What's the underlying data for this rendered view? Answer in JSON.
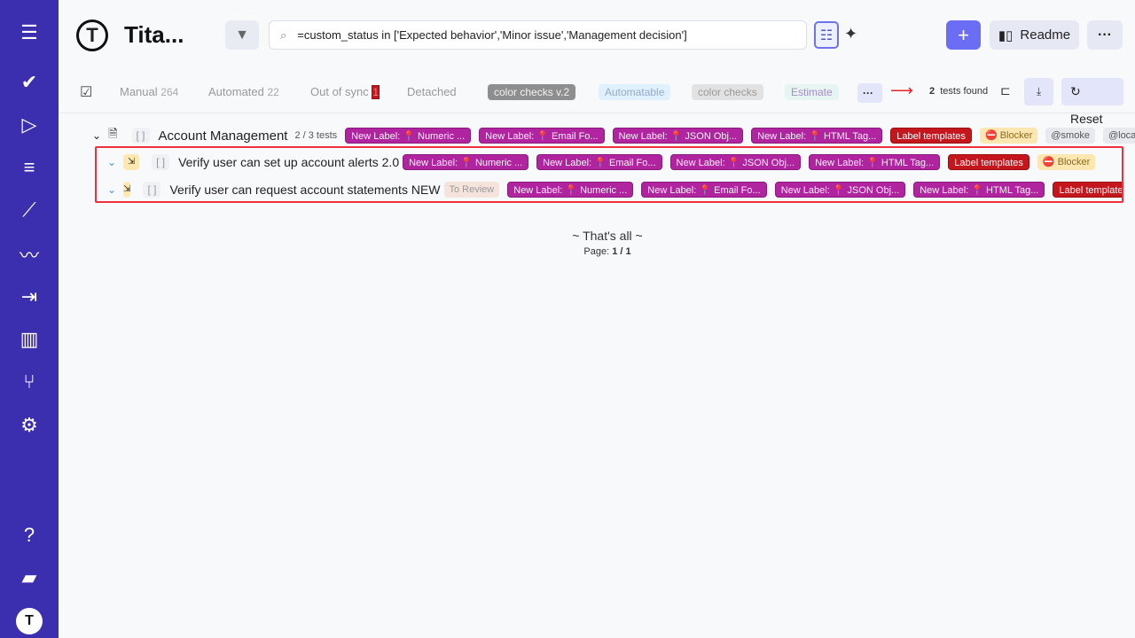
{
  "app": {
    "title": "Tita...",
    "logo_letter": "T"
  },
  "search": {
    "query": "=custom_status in ['Expected behavior','Minor issue','Management decision']"
  },
  "header": {
    "readme": "Readme",
    "plus": "+",
    "more": "···"
  },
  "tabs": [
    {
      "label": "Manual",
      "count": "264"
    },
    {
      "label": "Automated",
      "count": "22"
    },
    {
      "label": "Out of sync",
      "count": "1"
    },
    {
      "label": "Detached",
      "count": ""
    }
  ],
  "chips": [
    "color checks v.2",
    "Automatable",
    "color checks",
    "Estimate"
  ],
  "toolbar": {
    "more": "···",
    "tests_count": "2",
    "tests_found": "tests found",
    "reset": "Reset"
  },
  "suite": {
    "name": "Account Management",
    "count": "2 / 3 tests",
    "labels": [
      "New Label: 📍 Numeric ...",
      "New Label: 📍 Email Fo...",
      "New Label: 📍 JSON Obj...",
      "New Label: 📍 HTML Tag...",
      "Label templates",
      "⛔ Blocker",
      "@smoke",
      "@localisation"
    ]
  },
  "tests": [
    {
      "title": "Verify user can set up account alerts 2.0",
      "status": "",
      "labels": [
        "New Label: 📍 Numeric ...",
        "New Label: 📍 Email Fo...",
        "New Label: 📍 JSON Obj...",
        "New Label: 📍 HTML Tag...",
        "Label templates",
        "⛔ Blocker"
      ]
    },
    {
      "title": "Verify user can request account statements NEW",
      "status": "To Review",
      "labels": [
        "New Label: 📍 Numeric ...",
        "New Label: 📍 Email Fo...",
        "New Label: 📍 JSON Obj...",
        "New Label: 📍 HTML Tag...",
        "Label templates",
        "⛔"
      ]
    }
  ],
  "footer": {
    "end": "~ That's all ~",
    "page_label": "Page:",
    "page": "1 / 1"
  },
  "colors": {
    "sidebar": "#3b2fb0",
    "accent": "#6b6ef5",
    "label_purple": "#b0249f",
    "label_red": "#c4161c",
    "highlight": "#f0303c"
  }
}
